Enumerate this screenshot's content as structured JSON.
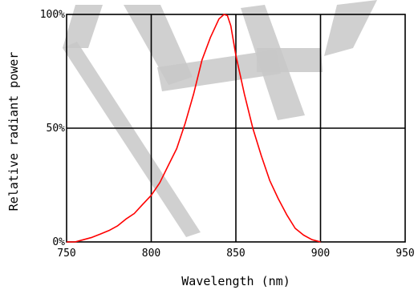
{
  "chart_data": {
    "type": "line",
    "xlabel": "Wavelength (nm)",
    "ylabel": "Relative radiant power",
    "xlim": [
      750,
      950
    ],
    "ylim": [
      0,
      100
    ],
    "x_ticks": [
      750,
      800,
      850,
      900,
      950
    ],
    "x_tick_labels": [
      "750",
      "800",
      "850",
      "900",
      "950"
    ],
    "y_ticks": [
      0,
      50,
      100
    ],
    "y_tick_labels": [
      "0%",
      "50%",
      "100%"
    ],
    "grid": true,
    "series": [
      {
        "color": "#ff0000",
        "x": [
          750,
          755,
          760,
          765,
          770,
          775,
          780,
          785,
          790,
          795,
          800,
          805,
          810,
          815,
          820,
          825,
          830,
          835,
          840,
          843,
          845,
          847,
          850,
          855,
          860,
          865,
          870,
          875,
          880,
          885,
          890,
          895,
          900
        ],
        "y": [
          0,
          0,
          1,
          2,
          3.5,
          5,
          7,
          10,
          12.5,
          16.5,
          20.5,
          26,
          33.5,
          41,
          52,
          65,
          80,
          90,
          98,
          100,
          99.5,
          95,
          82,
          65,
          50,
          38,
          27,
          19,
          12,
          6,
          3,
          1,
          0
        ]
      }
    ]
  }
}
